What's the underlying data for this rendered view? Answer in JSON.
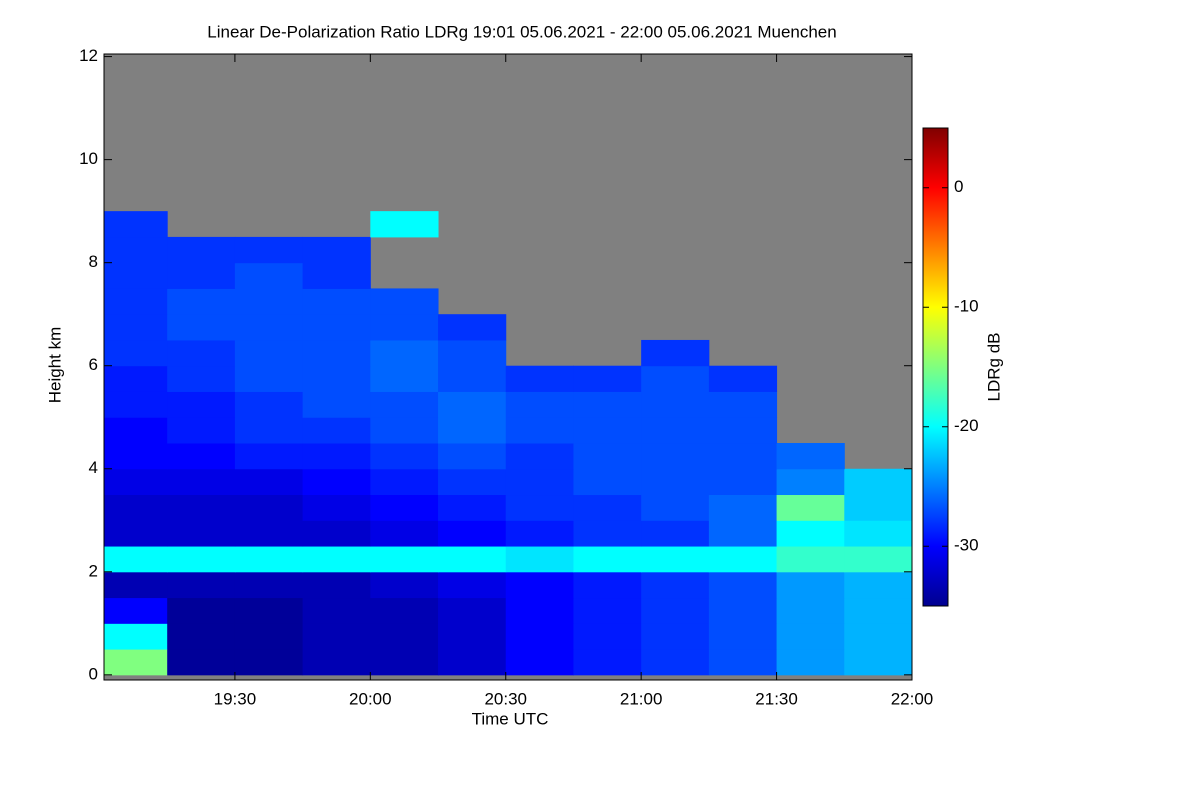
{
  "chart_data": {
    "type": "heatmap",
    "title": "Linear De-Polarization Ratio LDRg   19:01 05.06.2021 - 22:00 05.06.2021 Muenchen",
    "x_label": "Time UTC",
    "y_label": "Height km",
    "colorbar_label": "LDRg dB",
    "colormap": "jet",
    "x_bins": [
      1141,
      1155,
      1170,
      1185,
      1200,
      1215,
      1230,
      1245,
      1260,
      1275,
      1290,
      1305,
      1320
    ],
    "y_bins": [
      0,
      0.5,
      1,
      1.5,
      2,
      2.5,
      3,
      3.5,
      4,
      4.5,
      5,
      5.5,
      6,
      6.5,
      7,
      7.5,
      8,
      8.5,
      9,
      9.5,
      10,
      10.5,
      11,
      11.5,
      12
    ],
    "values": [
      [
        -15,
        -34,
        -34,
        -33,
        -33,
        -32,
        -30,
        -29,
        -28,
        -27,
        -24,
        -23
      ],
      [
        -20,
        -34,
        -34,
        -33,
        -33,
        -32,
        -30,
        -29,
        -28,
        -27,
        -24,
        -23
      ],
      [
        -30,
        -34,
        -34,
        -33,
        -33,
        -32,
        -30,
        -29,
        -28,
        -27,
        -24,
        -23
      ],
      [
        -33,
        -33,
        -33,
        -33,
        -32,
        -31,
        -30,
        -29,
        -28,
        -27,
        -24,
        -23
      ],
      [
        -20,
        -20,
        -20,
        -20,
        -20,
        -20,
        -21,
        -20,
        -20,
        -20,
        -18,
        -18
      ],
      [
        -32,
        -32,
        -32,
        -32,
        -31,
        -30,
        -29,
        -28,
        -28,
        -26,
        -20,
        -21
      ],
      [
        -32,
        -32,
        -32,
        -31,
        -30,
        -29,
        -28,
        -28,
        -27,
        -26,
        -16,
        -22
      ],
      [
        -31,
        -31,
        -31,
        -30,
        -29,
        -28,
        -28,
        -27,
        -27,
        -27,
        -25,
        -22
      ],
      [
        -30,
        -30,
        -29,
        -29,
        -28,
        -27,
        -28,
        -27,
        -27,
        -27,
        -26,
        null
      ],
      [
        -30,
        -29,
        -28,
        -28,
        -27,
        -26,
        -27,
        -27,
        -27,
        -27,
        null,
        null
      ],
      [
        -29,
        -29,
        -28,
        -27,
        -27,
        -26,
        -27,
        -27,
        -27,
        -27,
        null,
        null
      ],
      [
        -29,
        -28,
        -27,
        -27,
        -26,
        -27,
        -28,
        -28,
        -27,
        -28,
        null,
        null
      ],
      [
        -28,
        -28,
        -27,
        -27,
        -26,
        -27,
        null,
        null,
        -28,
        null,
        null,
        null
      ],
      [
        -28,
        -27,
        -27,
        -27,
        -27,
        -28,
        null,
        null,
        null,
        null,
        null,
        null
      ],
      [
        -28,
        -27,
        -27,
        -27,
        -27,
        null,
        null,
        null,
        null,
        null,
        null,
        null
      ],
      [
        -28,
        -28,
        -27,
        -28,
        null,
        null,
        null,
        null,
        null,
        null,
        null,
        null
      ],
      [
        -28,
        -28,
        -28,
        -28,
        null,
        null,
        null,
        null,
        null,
        null,
        null,
        null
      ],
      [
        -28,
        null,
        null,
        null,
        -20,
        null,
        null,
        null,
        null,
        null,
        null,
        null
      ],
      [
        null,
        null,
        null,
        null,
        null,
        null,
        null,
        null,
        null,
        null,
        null,
        null
      ],
      [
        null,
        null,
        null,
        null,
        null,
        null,
        null,
        null,
        null,
        null,
        null,
        null
      ],
      [
        null,
        null,
        null,
        null,
        null,
        null,
        null,
        null,
        null,
        null,
        null,
        null
      ],
      [
        null,
        null,
        null,
        null,
        null,
        null,
        null,
        null,
        null,
        null,
        null,
        null
      ],
      [
        null,
        null,
        null,
        null,
        null,
        null,
        null,
        null,
        null,
        null,
        null,
        null
      ],
      [
        null,
        null,
        null,
        null,
        null,
        null,
        null,
        null,
        null,
        null,
        null,
        null
      ]
    ],
    "xlim": [
      1141,
      1320
    ],
    "ylim": [
      -0.1,
      12.05
    ],
    "clim": [
      -35,
      5
    ],
    "xticks": [
      {
        "value": 1170,
        "label": "19:30"
      },
      {
        "value": 1200,
        "label": "20:00"
      },
      {
        "value": 1230,
        "label": "20:30"
      },
      {
        "value": 1260,
        "label": "21:00"
      },
      {
        "value": 1290,
        "label": "21:30"
      },
      {
        "value": 1320,
        "label": "22:00"
      }
    ],
    "yticks": [
      0,
      2,
      4,
      6,
      8,
      10,
      12
    ],
    "cticks": [
      0,
      -10,
      -20,
      -30
    ]
  }
}
